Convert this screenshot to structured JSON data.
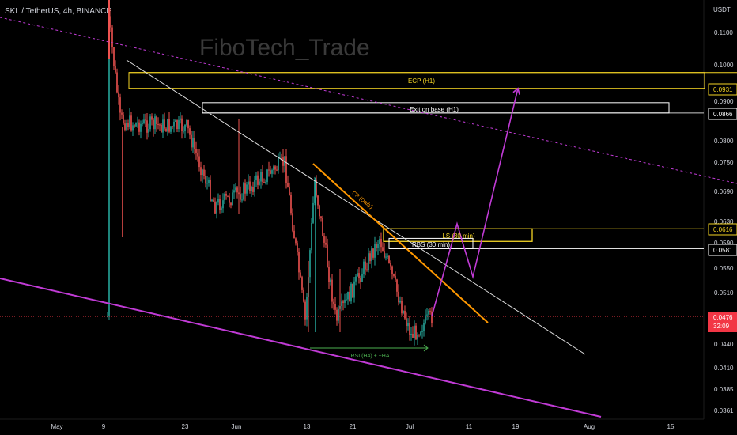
{
  "header": {
    "symbol_line": "SKL / TetherUS, 4h, BINANCE",
    "currency": "USDT",
    "watermark": "FiboTech_Trade"
  },
  "price_axis": {
    "ticks": [
      "0.1100",
      "0.1000",
      "0.0900",
      "0.0800",
      "0.0750",
      "0.0690",
      "0.0630",
      "0.0590",
      "0.0550",
      "0.0510",
      "0.0440",
      "0.0410",
      "0.0385",
      "0.0361"
    ]
  },
  "time_axis": {
    "ticks": [
      "May",
      "9",
      "23",
      "Jun",
      "13",
      "21",
      "Jul",
      "11",
      "19",
      "Aug",
      "15"
    ]
  },
  "price_tags": [
    {
      "value": "0.0931",
      "style": "yellow"
    },
    {
      "value": "0.0866",
      "style": "white"
    },
    {
      "value": "0.0616",
      "style": "yellow"
    },
    {
      "value": "0.0581",
      "style": "white"
    },
    {
      "value": "0.0476",
      "style": "current",
      "countdown": "32:09"
    }
  ],
  "annotations": {
    "ecp": "ECP (H1)",
    "exit_base": "Exit on base (H1)",
    "ls": "LS (30 min)",
    "rbs": "RBS (30 min)",
    "cp_daily": "CP (Daily)",
    "rsi": "RSI (H4) + +HA"
  },
  "colors": {
    "background": "#000000",
    "up_candle": "#26a69a",
    "down_candle": "#ef5350",
    "yellow": "#f5d524",
    "white": "#ffffff",
    "magenta": "#c13bd6",
    "orange": "#ff9800",
    "green": "#4caf50",
    "current_price": "#f23645"
  },
  "chart_data": {
    "type": "candlestick",
    "title": "SKL / TetherUS, 4h, BINANCE",
    "ylabel": "USDT",
    "y_scale": "log",
    "ylim": [
      0.0355,
      0.116
    ],
    "x_categories": [
      "May",
      "9",
      "23",
      "Jun",
      "13",
      "21",
      "Jul",
      "11",
      "19",
      "Aug",
      "15"
    ],
    "price_path": [
      {
        "x": "9",
        "close": 0.116
      },
      {
        "x": "11",
        "close": 0.085
      },
      {
        "x": "14",
        "close": 0.084
      },
      {
        "x": "23",
        "close": 0.083
      },
      {
        "x": "27",
        "close": 0.066
      },
      {
        "x": "Jun",
        "close": 0.068
      },
      {
        "x": "11",
        "close": 0.075
      },
      {
        "x": "13",
        "close": 0.047
      },
      {
        "x": "14",
        "close": 0.071
      },
      {
        "x": "17",
        "close": 0.047
      },
      {
        "x": "24",
        "close": 0.06
      },
      {
        "x": "Jul",
        "close": 0.045
      },
      {
        "x": "4",
        "close": 0.0476
      }
    ],
    "current_price": 0.0476,
    "levels": [
      {
        "name": "ECP (H1)",
        "value": 0.0931
      },
      {
        "name": "Exit on base (H1)",
        "value": 0.0866
      },
      {
        "name": "LS (30 min)",
        "value": 0.0616
      },
      {
        "name": "RBS (30 min)",
        "value": 0.0581
      }
    ],
    "projection_path": [
      0.0476,
      0.0625,
      0.0535,
      0.0931
    ],
    "grid": false
  }
}
